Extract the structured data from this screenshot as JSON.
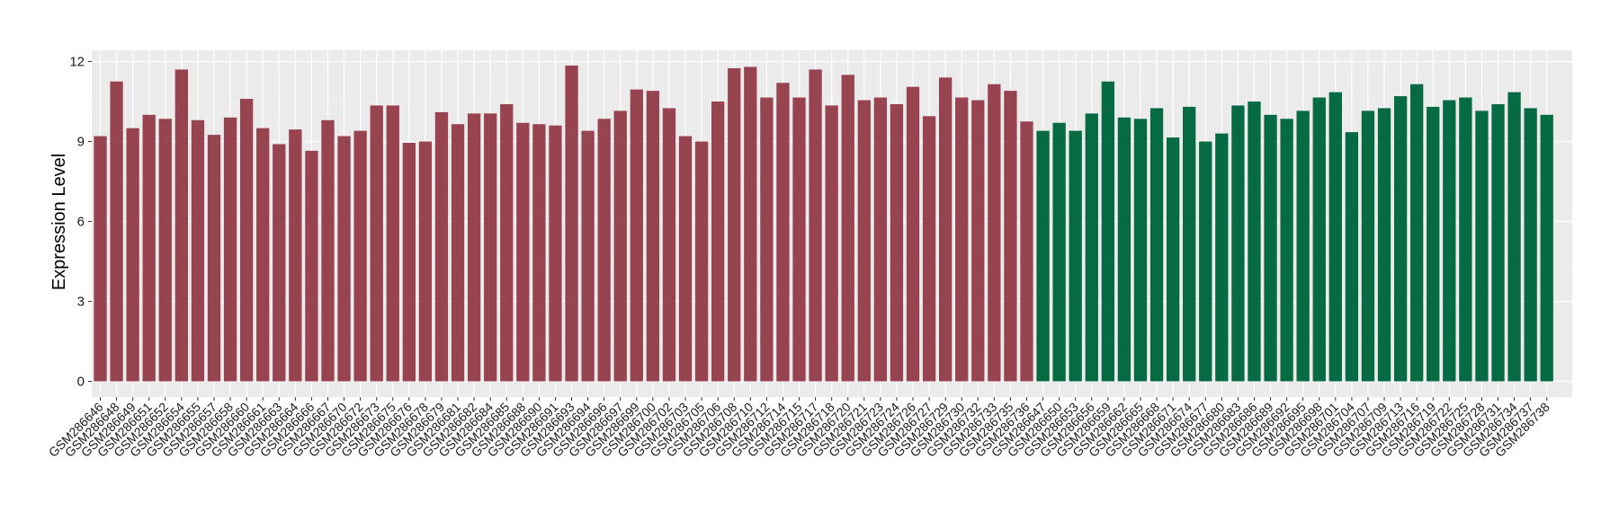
{
  "chart_data": {
    "type": "bar",
    "title": "",
    "xlabel": "",
    "ylabel": "Expression Level",
    "ylim": [
      0,
      12.4
    ],
    "yticks": [
      0,
      3,
      6,
      9,
      12
    ],
    "grid": true,
    "legend": "none",
    "colors": {
      "panel": "#ebebeb",
      "grid_major": "#ffffff",
      "grid_minor": "#f5f5f5",
      "groupA": "#984350",
      "groupB": "#066a42"
    },
    "categories": [
      "GSM286646",
      "GSM286648",
      "GSM286649",
      "GSM286651",
      "GSM286652",
      "GSM286654",
      "GSM286655",
      "GSM286657",
      "GSM286658",
      "GSM286660",
      "GSM286661",
      "GSM286663",
      "GSM286664",
      "GSM286666",
      "GSM286667",
      "GSM286670",
      "GSM286672",
      "GSM286673",
      "GSM286675",
      "GSM286676",
      "GSM286678",
      "GSM286679",
      "GSM286681",
      "GSM286682",
      "GSM286684",
      "GSM286685",
      "GSM286688",
      "GSM286690",
      "GSM286691",
      "GSM286693",
      "GSM286694",
      "GSM286696",
      "GSM286697",
      "GSM286699",
      "GSM286700",
      "GSM286702",
      "GSM286703",
      "GSM286705",
      "GSM286706",
      "GSM286708",
      "GSM286710",
      "GSM286712",
      "GSM286714",
      "GSM286715",
      "GSM286717",
      "GSM286718",
      "GSM286720",
      "GSM286721",
      "GSM286723",
      "GSM286724",
      "GSM286726",
      "GSM286727",
      "GSM286729",
      "GSM286730",
      "GSM286732",
      "GSM286733",
      "GSM286735",
      "GSM286736",
      "GSM286647",
      "GSM286650",
      "GSM286653",
      "GSM286656",
      "GSM286659",
      "GSM286662",
      "GSM286665",
      "GSM286668",
      "GSM286671",
      "GSM286674",
      "GSM286677",
      "GSM286680",
      "GSM286683",
      "GSM286686",
      "GSM286689",
      "GSM286692",
      "GSM286695",
      "GSM286698",
      "GSM286701",
      "GSM286704",
      "GSM286707",
      "GSM286709",
      "GSM286713",
      "GSM286716",
      "GSM286719",
      "GSM286722",
      "GSM286725",
      "GSM286728",
      "GSM286731",
      "GSM286734",
      "GSM286737",
      "GSM286738"
    ],
    "values": [
      9.2,
      11.25,
      9.5,
      10.0,
      9.85,
      11.7,
      9.8,
      9.25,
      9.9,
      10.6,
      9.5,
      8.9,
      9.45,
      8.65,
      9.8,
      9.2,
      9.4,
      10.35,
      10.35,
      8.95,
      9.0,
      10.1,
      9.65,
      10.05,
      10.05,
      10.4,
      9.7,
      9.65,
      9.6,
      11.85,
      9.4,
      9.85,
      10.15,
      10.95,
      10.9,
      10.25,
      9.2,
      9.0,
      10.5,
      11.75,
      11.8,
      10.65,
      11.2,
      10.65,
      11.7,
      10.35,
      11.5,
      10.55,
      10.65,
      10.4,
      11.05,
      9.95,
      11.4,
      10.65,
      10.55,
      11.15,
      10.9,
      9.75,
      9.4,
      9.7,
      9.4,
      10.05,
      11.25,
      9.9,
      9.85,
      10.25,
      9.15,
      10.3,
      9.0,
      9.3,
      10.35,
      10.5,
      10.0,
      9.85,
      10.15,
      10.65,
      10.85,
      9.35,
      10.15,
      10.25,
      10.7,
      11.15,
      10.3,
      10.55,
      10.65,
      10.15,
      10.4,
      10.85,
      10.25,
      10.0
    ],
    "groups": [
      "A",
      "A",
      "A",
      "A",
      "A",
      "A",
      "A",
      "A",
      "A",
      "A",
      "A",
      "A",
      "A",
      "A",
      "A",
      "A",
      "A",
      "A",
      "A",
      "A",
      "A",
      "A",
      "A",
      "A",
      "A",
      "A",
      "A",
      "A",
      "A",
      "A",
      "A",
      "A",
      "A",
      "A",
      "A",
      "A",
      "A",
      "A",
      "A",
      "A",
      "A",
      "A",
      "A",
      "A",
      "A",
      "A",
      "A",
      "A",
      "A",
      "A",
      "A",
      "A",
      "A",
      "A",
      "A",
      "A",
      "A",
      "A",
      "B",
      "B",
      "B",
      "B",
      "B",
      "B",
      "B",
      "B",
      "B",
      "B",
      "B",
      "B",
      "B",
      "B",
      "B",
      "B",
      "B",
      "B",
      "B",
      "B",
      "B",
      "B",
      "B",
      "B",
      "B",
      "B",
      "B",
      "B",
      "B",
      "B",
      "B",
      "B"
    ]
  }
}
